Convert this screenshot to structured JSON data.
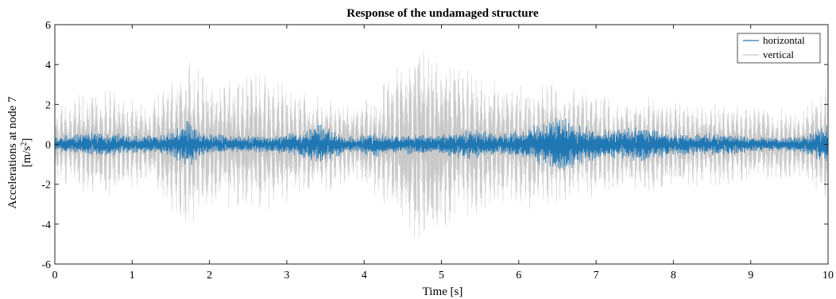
{
  "chart_data": {
    "type": "line",
    "title": "Response of the undamaged structure",
    "xlabel": "Time [s]",
    "ylabel_line1": "Accelerations at node 7",
    "ylabel_line2_main": "[m/s",
    "ylabel_line2_sup": "2",
    "ylabel_line2_end": "]",
    "xlim": [
      0,
      10
    ],
    "ylim": [
      -6,
      6
    ],
    "xticks": [
      0,
      1,
      2,
      3,
      4,
      5,
      6,
      7,
      8,
      9,
      10
    ],
    "yticks": [
      -6,
      -4,
      -2,
      0,
      2,
      4,
      6
    ],
    "xtick_labels": [
      "0",
      "1",
      "2",
      "3",
      "4",
      "5",
      "6",
      "7",
      "8",
      "9",
      "10"
    ],
    "ytick_labels": [
      "-6",
      "-4",
      "-2",
      "0",
      "2",
      "4",
      "6"
    ],
    "grid": false,
    "legend_position": "top-right",
    "series": [
      {
        "name": "horizontal",
        "color": "#1f77b4",
        "signal": "oscillating acceleration, amplitude envelope in m/s^2 vs time",
        "envelope": {
          "t": [
            0.0,
            0.3,
            0.6,
            0.9,
            1.2,
            1.5,
            1.72,
            1.9,
            2.3,
            2.8,
            3.15,
            3.4,
            3.7,
            3.9,
            4.1,
            4.3,
            4.6,
            5.0,
            5.4,
            5.8,
            6.2,
            6.55,
            6.8,
            7.1,
            7.3,
            7.6,
            7.9,
            8.2,
            8.6,
            9.0,
            9.4,
            9.7,
            10.0
          ],
          "amp": [
            0.4,
            0.55,
            0.7,
            0.5,
            0.45,
            0.6,
            1.3,
            0.6,
            0.45,
            0.45,
            0.6,
            1.1,
            0.55,
            0.35,
            0.75,
            0.45,
            0.5,
            0.55,
            0.8,
            0.55,
            0.95,
            1.5,
            1.0,
            0.75,
            0.8,
            0.95,
            0.65,
            0.55,
            0.6,
            0.45,
            0.35,
            0.45,
            1.1
          ]
        }
      },
      {
        "name": "vertical",
        "color": "#c8c8c8",
        "signal": "oscillating acceleration, amplitude envelope in m/s^2 vs time",
        "envelope": {
          "t": [
            0.0,
            0.3,
            0.6,
            0.9,
            1.2,
            1.5,
            1.72,
            2.0,
            2.3,
            2.7,
            3.0,
            3.3,
            3.6,
            3.9,
            4.2,
            4.5,
            4.72,
            4.9,
            5.2,
            5.5,
            5.8,
            6.1,
            6.5,
            6.9,
            7.3,
            7.7,
            8.0,
            8.4,
            8.8,
            9.2,
            9.6,
            10.0
          ],
          "amp": [
            1.8,
            2.5,
            2.9,
            2.4,
            2.0,
            3.3,
            4.2,
            3.6,
            3.3,
            3.6,
            3.0,
            2.6,
            2.5,
            1.9,
            2.9,
            4.6,
            5.4,
            4.8,
            4.1,
            3.5,
            3.0,
            3.3,
            3.1,
            2.8,
            2.3,
            2.5,
            2.2,
            2.2,
            2.0,
            1.9,
            1.7,
            2.9
          ]
        }
      }
    ]
  }
}
